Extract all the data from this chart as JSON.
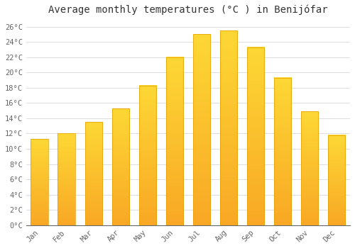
{
  "title": "Average monthly temperatures (°C ) in Benijófar",
  "months": [
    "Jan",
    "Feb",
    "Mar",
    "Apr",
    "May",
    "Jun",
    "Jul",
    "Aug",
    "Sep",
    "Oct",
    "Nov",
    "Dec"
  ],
  "values": [
    11.3,
    12.0,
    13.5,
    15.3,
    18.3,
    22.0,
    25.0,
    25.5,
    23.3,
    19.3,
    14.9,
    11.8
  ],
  "bar_color_top": "#FDD835",
  "bar_color_bottom": "#F9A825",
  "bar_edge_color": "#E69B00",
  "background_color": "#FFFFFF",
  "plot_bg_color": "#FFFFFF",
  "grid_color": "#DDDDDD",
  "text_color": "#666666",
  "ylim": [
    0,
    27
  ],
  "yticks": [
    0,
    2,
    4,
    6,
    8,
    10,
    12,
    14,
    16,
    18,
    20,
    22,
    24,
    26
  ],
  "ytick_labels": [
    "0°C",
    "2°C",
    "4°C",
    "6°C",
    "8°C",
    "10°C",
    "12°C",
    "14°C",
    "16°C",
    "18°C",
    "20°C",
    "22°C",
    "24°C",
    "26°C"
  ],
  "title_fontsize": 10,
  "tick_fontsize": 7.5,
  "font_family": "monospace",
  "bar_width": 0.65
}
